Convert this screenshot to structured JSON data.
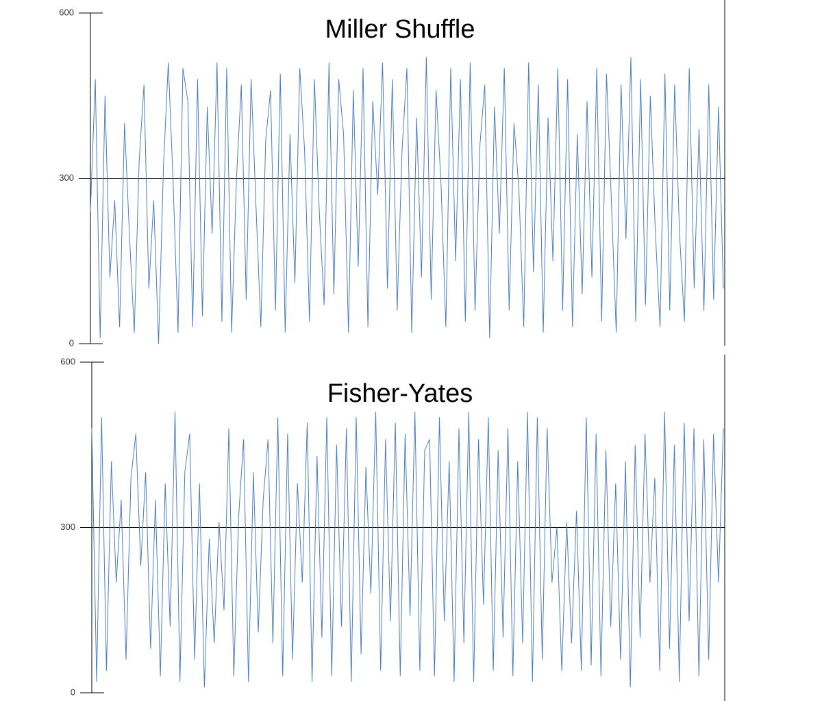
{
  "chart_data": [
    {
      "type": "line",
      "title": "Miller Shuffle",
      "color": "#4a7ebb",
      "ylim": [
        0,
        600
      ],
      "yticks": [
        0,
        300,
        600
      ],
      "grid": true,
      "values": [
        240,
        480,
        10,
        450,
        120,
        260,
        30,
        400,
        200,
        20,
        330,
        470,
        100,
        260,
        0,
        320,
        510,
        290,
        20,
        500,
        440,
        30,
        480,
        50,
        430,
        200,
        510,
        40,
        500,
        20,
        300,
        470,
        80,
        480,
        250,
        30,
        370,
        460,
        60,
        490,
        20,
        380,
        110,
        500,
        350,
        40,
        480,
        240,
        70,
        510,
        90,
        480,
        380,
        20,
        460,
        140,
        500,
        30,
        440,
        270,
        510,
        100,
        480,
        60,
        350,
        500,
        20,
        410,
        120,
        520,
        80,
        460,
        290,
        30,
        500,
        150,
        480,
        40,
        510,
        60,
        360,
        470,
        10,
        430,
        200,
        500,
        60,
        400,
        280,
        30,
        510,
        130,
        470,
        20,
        410,
        150,
        500,
        60,
        480,
        30,
        380,
        90,
        440,
        120,
        500,
        40,
        490,
        260,
        20,
        470,
        190,
        520,
        40,
        480,
        70,
        450,
        210,
        30,
        490,
        60,
        470,
        200,
        40,
        500,
        100,
        390,
        60,
        470,
        80,
        430,
        100
      ]
    },
    {
      "type": "line",
      "title": "Fisher-Yates",
      "color": "#4a7ebb",
      "ylim": [
        0,
        600
      ],
      "yticks": [
        0,
        300,
        600
      ],
      "grid": true,
      "values": [
        480,
        20,
        500,
        40,
        420,
        200,
        350,
        60,
        390,
        470,
        230,
        400,
        80,
        350,
        30,
        380,
        120,
        510,
        20,
        400,
        470,
        60,
        380,
        10,
        280,
        90,
        310,
        150,
        480,
        30,
        320,
        460,
        20,
        400,
        110,
        350,
        460,
        90,
        500,
        30,
        470,
        60,
        380,
        200,
        490,
        20,
        430,
        100,
        500,
        30,
        450,
        120,
        480,
        20,
        500,
        70,
        410,
        180,
        510,
        40,
        460,
        130,
        490,
        30,
        470,
        140,
        510,
        40,
        440,
        460,
        30,
        500,
        130,
        420,
        20,
        480,
        90,
        510,
        20,
        460,
        160,
        500,
        40,
        440,
        100,
        480,
        30,
        420,
        90,
        510,
        20,
        500,
        60,
        480,
        200,
        300,
        40,
        310,
        90,
        330,
        40,
        500,
        50,
        470,
        30,
        440,
        120,
        380,
        60,
        420,
        10,
        450,
        100,
        470,
        200,
        390,
        40,
        510,
        80,
        450,
        20,
        490,
        130,
        480,
        30,
        460,
        60,
        470,
        200,
        480
      ]
    }
  ]
}
